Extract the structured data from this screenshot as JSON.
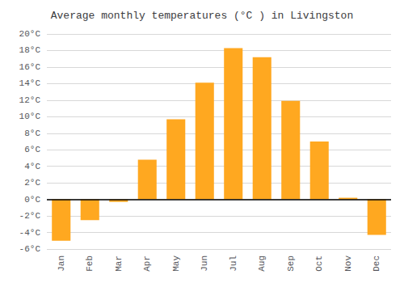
{
  "chart_data": {
    "type": "bar",
    "title": "Average monthly temperatures (°C ) in Livingston",
    "categories": [
      "Jan",
      "Feb",
      "Mar",
      "Apr",
      "May",
      "Jun",
      "Jul",
      "Aug",
      "Sep",
      "Oct",
      "Nov",
      "Dec"
    ],
    "values": [
      -5.0,
      -2.5,
      -0.3,
      4.8,
      9.7,
      14.1,
      18.3,
      17.2,
      11.9,
      7.0,
      0.2,
      -4.3
    ],
    "color": "#FFA820",
    "ylim": [
      -6,
      20
    ],
    "yticks": [
      {
        "value": -6,
        "label": "-6°C"
      },
      {
        "value": -4,
        "label": "-4°C"
      },
      {
        "value": -2,
        "label": "-2°C"
      },
      {
        "value": 0,
        "label": "0°C"
      },
      {
        "value": 2,
        "label": "2°C"
      },
      {
        "value": 4,
        "label": "4°C"
      },
      {
        "value": 6,
        "label": "6°C"
      },
      {
        "value": 8,
        "label": "8°C"
      },
      {
        "value": 10,
        "label": "10°C"
      },
      {
        "value": 12,
        "label": "12°C"
      },
      {
        "value": 14,
        "label": "14°C"
      },
      {
        "value": 16,
        "label": "16°C"
      },
      {
        "value": 18,
        "label": "18°C"
      },
      {
        "value": 20,
        "label": "20°C"
      }
    ],
    "grid": true
  }
}
